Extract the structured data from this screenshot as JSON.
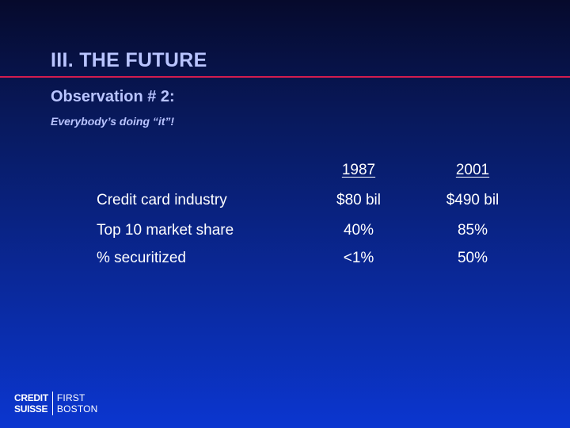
{
  "slide": {
    "title": "III.  THE FUTURE",
    "subtitle": "Observation # 2:",
    "subsubtitle": "Everybody’s doing “it”!"
  },
  "table": {
    "headers": [
      "1987",
      "2001"
    ],
    "rows": [
      {
        "label": "Credit card industry",
        "values": [
          "$80 bil",
          "$490 bil"
        ]
      },
      {
        "label": "Top 10 market share",
        "values": [
          "40%",
          "85%"
        ]
      },
      {
        "label": "% securitized",
        "values": [
          "<1%",
          "50%"
        ]
      }
    ]
  },
  "logo": {
    "line1_left": "CREDIT",
    "line2_left": "SUISSE",
    "line1_right": "FIRST",
    "line2_right": "BOSTON"
  },
  "colors": {
    "title_text": "#b9c4ff",
    "title_rule": "#d21c4e",
    "background_top": "#060a2c",
    "background_bottom": "#0b36d0"
  }
}
